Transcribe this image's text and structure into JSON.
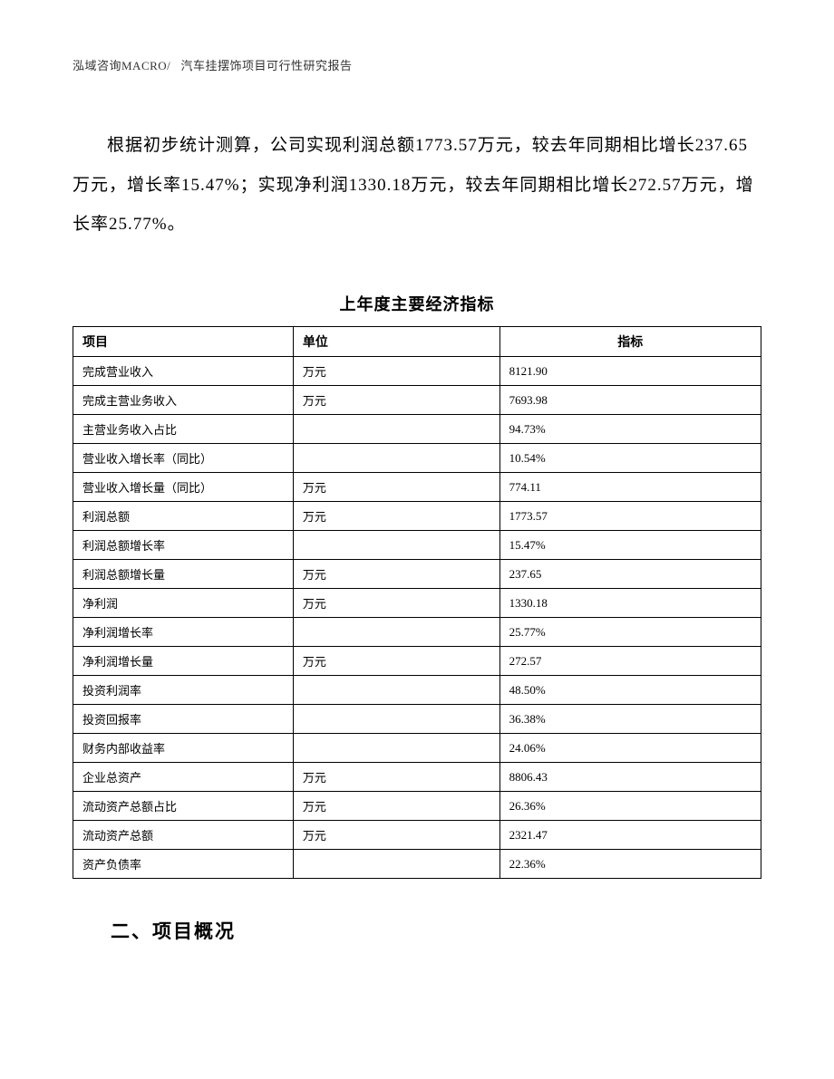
{
  "header": {
    "company": "泓域咨询MACRO/",
    "report_title": "汽车挂摆饰项目可行性研究报告"
  },
  "paragraph": "根据初步统计测算，公司实现利润总额1773.57万元，较去年同期相比增长237.65万元，增长率15.47%；实现净利润1330.18万元，较去年同期相比增长272.57万元，增长率25.77%。",
  "table": {
    "title": "上年度主要经济指标",
    "columns": [
      "项目",
      "单位",
      "指标"
    ],
    "rows": [
      [
        "完成营业收入",
        "万元",
        "8121.90"
      ],
      [
        "完成主营业务收入",
        "万元",
        "7693.98"
      ],
      [
        "主营业务收入占比",
        "",
        "94.73%"
      ],
      [
        "营业收入增长率（同比）",
        "",
        "10.54%"
      ],
      [
        "营业收入增长量（同比）",
        "万元",
        "774.11"
      ],
      [
        "利润总额",
        "万元",
        "1773.57"
      ],
      [
        "利润总额增长率",
        "",
        "15.47%"
      ],
      [
        "利润总额增长量",
        "万元",
        "237.65"
      ],
      [
        "净利润",
        "万元",
        "1330.18"
      ],
      [
        "净利润增长率",
        "",
        "25.77%"
      ],
      [
        "净利润增长量",
        "万元",
        "272.57"
      ],
      [
        "投资利润率",
        "",
        "48.50%"
      ],
      [
        "投资回报率",
        "",
        "36.38%"
      ],
      [
        "财务内部收益率",
        "",
        "24.06%"
      ],
      [
        "企业总资产",
        "万元",
        "8806.43"
      ],
      [
        "流动资产总额占比",
        "万元",
        "26.36%"
      ],
      [
        "流动资产总额",
        "万元",
        "2321.47"
      ],
      [
        "资产负债率",
        "",
        "22.36%"
      ]
    ]
  },
  "section_title": "二、项目概况"
}
